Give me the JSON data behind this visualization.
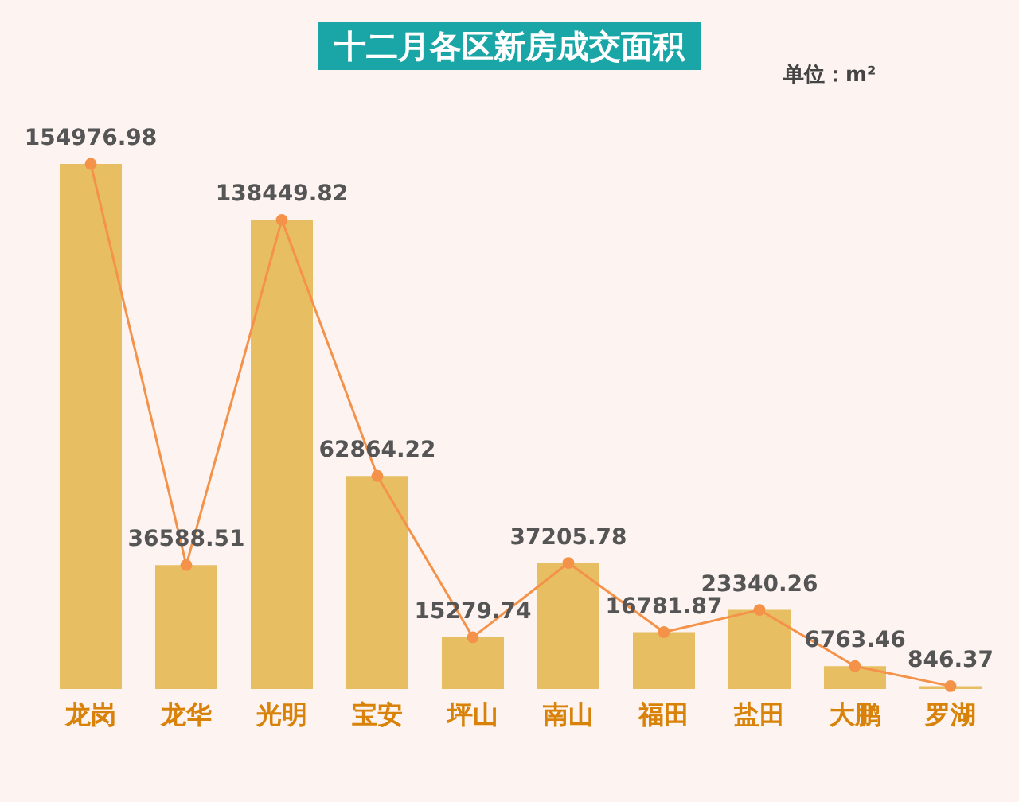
{
  "chart_data": {
    "type": "bar",
    "title": "十二月各区新房成交面积",
    "annotations": [
      "单位：m²"
    ],
    "categories": [
      "龙岗",
      "龙华",
      "光明",
      "宝安",
      "坪山",
      "南山",
      "福田",
      "盐田",
      "大鹏",
      "罗湖"
    ],
    "series": [
      {
        "color": "#e8be62",
        "values": [
          154976.98,
          36588.51,
          138449.82,
          62864.22,
          15279.74,
          37205.78,
          16781.87,
          23340.26,
          6763.46,
          846.37
        ],
        "value_labels": [
          "154976.98",
          "36588.51",
          "138449.82",
          "62864.22",
          "15279.74",
          "37205.78",
          "16781.87",
          "23340.26",
          "6763.46",
          "846.37"
        ]
      },
      {
        "type": "line",
        "color": "#f4924a",
        "values": [
          154976.98,
          36588.51,
          138449.82,
          62864.22,
          15279.74,
          37205.78,
          16781.87,
          23340.26,
          6763.46,
          846.37
        ]
      }
    ],
    "marker": "circle",
    "tick_labels": "x"
  }
}
